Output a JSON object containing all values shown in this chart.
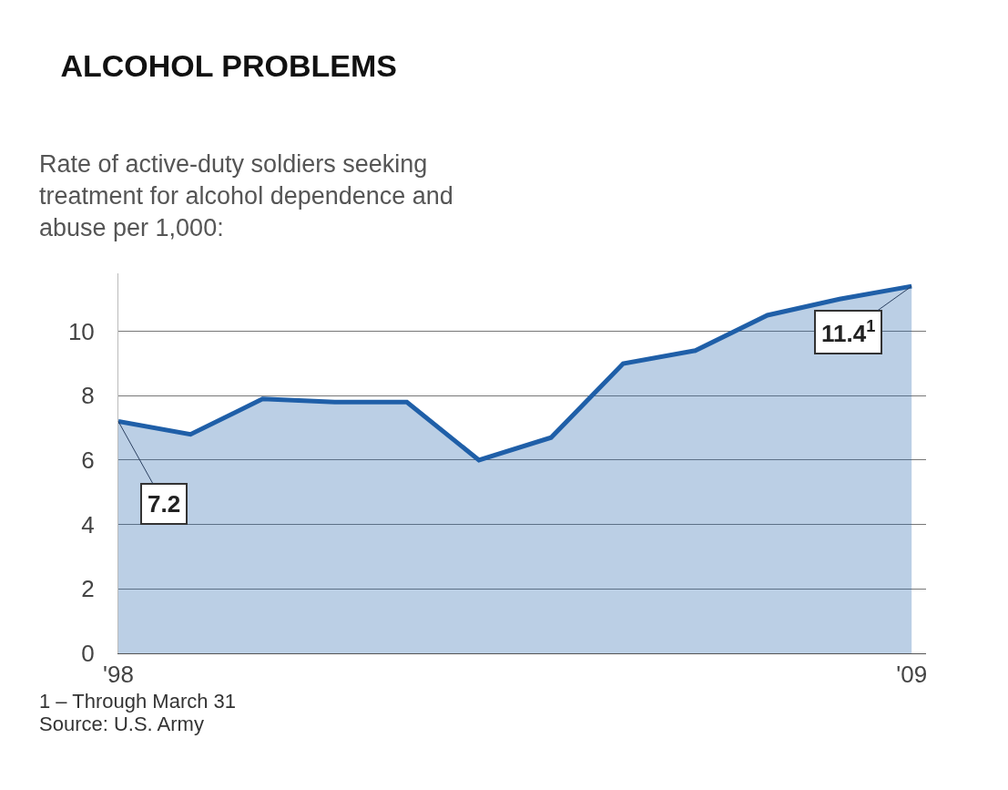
{
  "chart_data": {
    "type": "area",
    "title": "ALCOHOL PROBLEMS",
    "subtitle": "Rate of active-duty soldiers seeking\ntreatment for alcohol dependence and\nabuse per 1,000:",
    "x": [
      1998,
      1999,
      2000,
      2001,
      2002,
      2003,
      2004,
      2005,
      2006,
      2007,
      2008,
      2009
    ],
    "series": [
      {
        "color": "#1f5fa8",
        "values": [
          7.2,
          6.8,
          7.9,
          7.8,
          7.8,
          6.0,
          6.7,
          9.0,
          9.4,
          10.5,
          11.0,
          11.4
        ]
      }
    ],
    "xlim": [
      1998,
      2009.2
    ],
    "xticks": [
      {
        "value": 1998,
        "label": "'98"
      },
      {
        "value": 2009,
        "label": "'09"
      }
    ],
    "ylim": [
      0,
      11.8
    ],
    "yticks": [
      0,
      2,
      4,
      6,
      8,
      10
    ],
    "grid": "y",
    "annotations": [
      {
        "text": "7.2",
        "x": 1998,
        "y": 7.2
      },
      {
        "text": "11.4$^{1}$",
        "x": 2009,
        "y": 11.4
      },
      "1 – Through March 31",
      "Source: U.S. Army"
    ]
  }
}
